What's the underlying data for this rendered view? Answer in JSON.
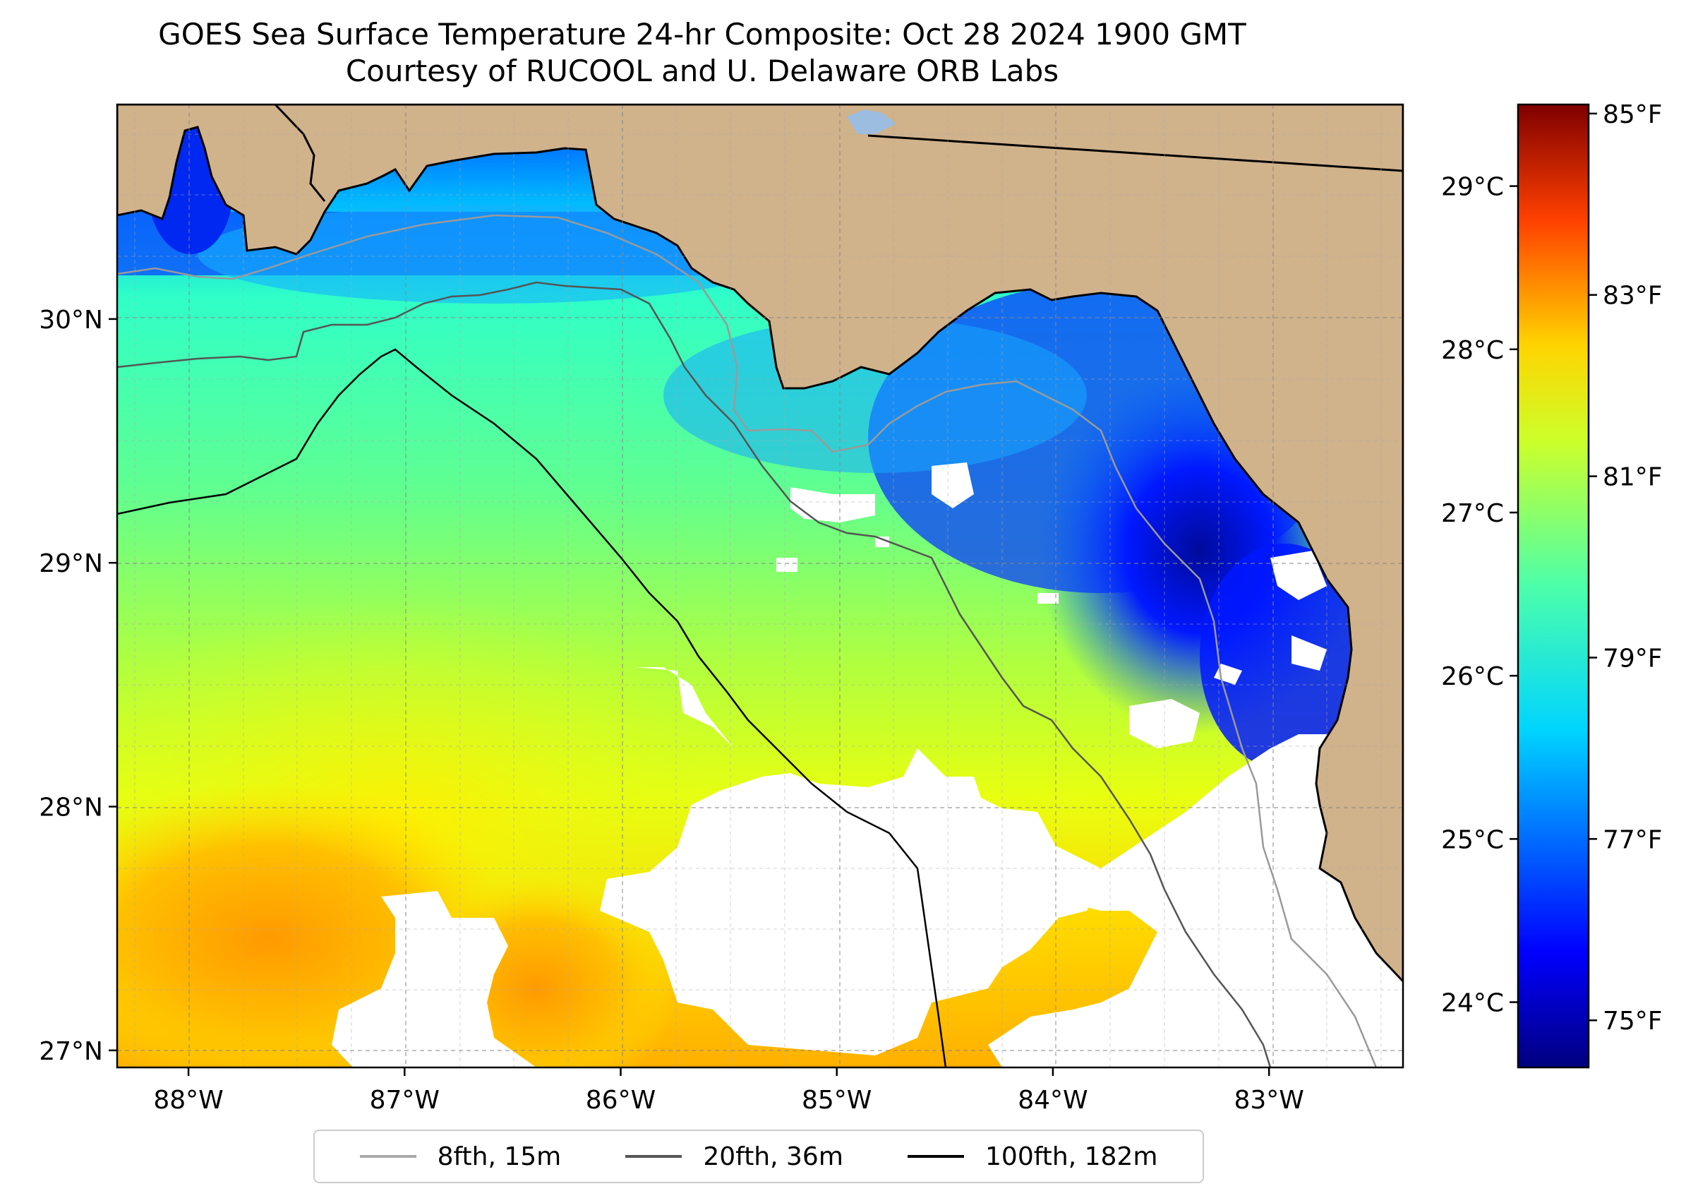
{
  "title": {
    "line1": "GOES Sea Surface Temperature 24-hr Composite: Oct 28 2024 1900 GMT",
    "line2": "Courtesy of RUCOOL and U. Delaware ORB Labs"
  },
  "map": {
    "lon_range": [
      -88.33,
      -82.38
    ],
    "lat_range": [
      26.93,
      30.88
    ],
    "lat_ticks": [
      {
        "value": 27,
        "label": "27°N"
      },
      {
        "value": 28,
        "label": "28°N"
      },
      {
        "value": 29,
        "label": "29°N"
      },
      {
        "value": 30,
        "label": "30°N"
      }
    ],
    "lon_ticks": [
      {
        "value": -88,
        "label": "88°W"
      },
      {
        "value": -87,
        "label": "87°W"
      },
      {
        "value": -86,
        "label": "86°W"
      },
      {
        "value": -85,
        "label": "85°W"
      },
      {
        "value": -84,
        "label": "84°W"
      },
      {
        "value": -83,
        "label": "83°W"
      }
    ],
    "land_color": "#d0b28b",
    "no_data_color": "#ffffff",
    "gridlines": "dashed"
  },
  "colorbar": {
    "colormap": "jet",
    "celsius_ticks": [
      {
        "value": 24,
        "label": "24°C"
      },
      {
        "value": 25,
        "label": "25°C"
      },
      {
        "value": 26,
        "label": "26°C"
      },
      {
        "value": 27,
        "label": "27°C"
      },
      {
        "value": 28,
        "label": "28°C"
      },
      {
        "value": 29,
        "label": "29°C"
      }
    ],
    "fahrenheit_ticks": [
      {
        "value": 75,
        "label": "75°F"
      },
      {
        "value": 77,
        "label": "77°F"
      },
      {
        "value": 79,
        "label": "79°F"
      },
      {
        "value": 81,
        "label": "81°F"
      },
      {
        "value": 83,
        "label": "83°F"
      },
      {
        "value": 85,
        "label": "85°F"
      }
    ],
    "range_celsius": [
      23.6,
      29.5
    ]
  },
  "legend": {
    "items": [
      {
        "label": "8fth, 15m",
        "color": "#aaaaaa"
      },
      {
        "label": "20fth, 36m",
        "color": "#555555"
      },
      {
        "label": "100fth, 182m",
        "color": "#000000"
      }
    ]
  }
}
